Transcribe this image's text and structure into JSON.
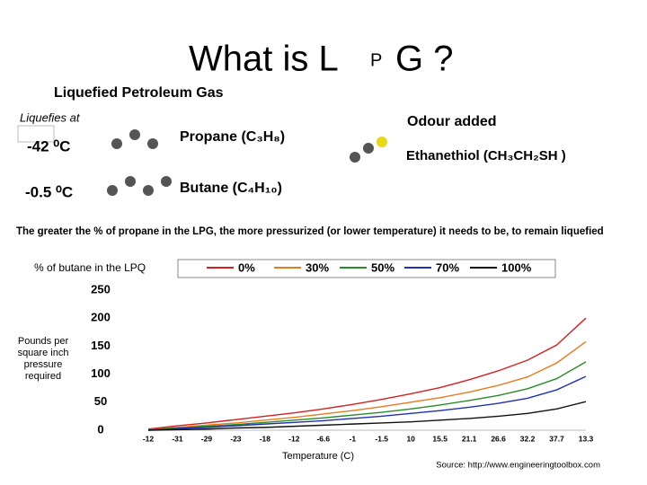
{
  "slide": {
    "title_start": "What is L",
    "title_small": "P",
    "title_end": "G ?",
    "subtitle": "Liquefied Petroleum Gas",
    "liquefies_at": "Liquefies at",
    "propane_temp": "-42 ⁰C",
    "butane_temp": "-0.5 ⁰C",
    "propane": "Propane (C₃H₈)",
    "butane": "Butane (C₄H₁₀)",
    "odour": "Odour added",
    "ethanethiol": "Ethanethiol (CH₃CH₂SH )",
    "note": "The greater the % of propane in the LPG, the more pressurized (or lower temperature)  it needs to be, to remain liquefied",
    "source": "Source: http://www.engineeringtoolbox.com"
  },
  "chart_data": {
    "type": "line",
    "legend_title": "% of butane in the LPQ",
    "y_label": "Pounds per square inch pressure required",
    "x_label": "Temperature (C)",
    "categories": [
      "-12",
      "-31",
      "-29",
      "-23",
      "-18",
      "-12",
      "-6.6",
      "-1",
      "-1.5",
      "10",
      "15.5",
      "21.1",
      "26.6",
      "32.2",
      "37.7",
      "13.3"
    ],
    "ylim": [
      0,
      250
    ],
    "yticks": [
      0,
      50,
      100,
      150,
      200,
      250
    ],
    "series": [
      {
        "name": "0%",
        "color": "#d42020",
        "values": [
          2,
          8,
          13,
          19,
          25,
          31,
          38,
          46,
          55,
          65,
          76,
          90,
          106,
          125,
          152,
          200
        ]
      },
      {
        "name": "30%",
        "color": "#e87a1e",
        "values": [
          1,
          5,
          9,
          13,
          18,
          23,
          29,
          35,
          42,
          50,
          58,
          68,
          80,
          95,
          120,
          158
        ]
      },
      {
        "name": "50%",
        "color": "#2a8a2a",
        "values": [
          1,
          4,
          7,
          10,
          14,
          18,
          22,
          27,
          32,
          38,
          45,
          53,
          62,
          74,
          92,
          122
        ]
      },
      {
        "name": "70%",
        "color": "#2030b0",
        "values": [
          0,
          3,
          5,
          8,
          11,
          14,
          17,
          21,
          25,
          30,
          35,
          41,
          48,
          57,
          72,
          96
        ]
      },
      {
        "name": "100%",
        "color": "#111111",
        "values": [
          0,
          1,
          2,
          4,
          5,
          7,
          9,
          11,
          13,
          15,
          18,
          21,
          25,
          30,
          38,
          51
        ]
      }
    ]
  }
}
